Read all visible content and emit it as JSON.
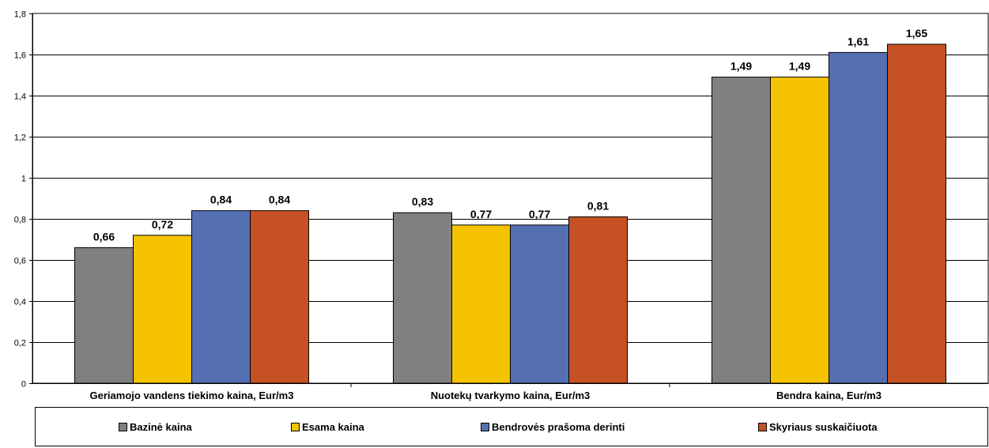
{
  "chart_data": {
    "type": "bar",
    "categories": [
      "Geriamojo vandens tiekimo kaina, Eur/m3",
      "Nuotekų tvarkymo kaina, Eur/m3",
      "Bendra kaina, Eur/m3"
    ],
    "series": [
      {
        "name": "Bazinė kaina",
        "color": "#808080",
        "values": [
          0.66,
          0.83,
          1.49
        ],
        "labels": [
          "0,66",
          "0,83",
          "1,49"
        ]
      },
      {
        "name": "Esama kaina",
        "color": "#f5c300",
        "values": [
          0.72,
          0.77,
          1.49
        ],
        "labels": [
          "0,72",
          "0,77",
          "1,49"
        ]
      },
      {
        "name": "Bendrovės prašoma derinti",
        "color": "#5470b3",
        "values": [
          0.84,
          0.77,
          1.61
        ],
        "labels": [
          "0,84",
          "0,77",
          "1,61"
        ]
      },
      {
        "name": "Skyriaus suskaičiuota",
        "color": "#c55124",
        "values": [
          0.84,
          0.81,
          1.65
        ],
        "labels": [
          "0,84",
          "0,81",
          "1,65"
        ]
      }
    ],
    "ylim": [
      0,
      1.8
    ],
    "yticks": [
      "0",
      "0,2",
      "0,4",
      "0,6",
      "0,8",
      "1",
      "1,2",
      "1,4",
      "1,6",
      "1,8"
    ],
    "grid": true,
    "legend": "bottom"
  }
}
